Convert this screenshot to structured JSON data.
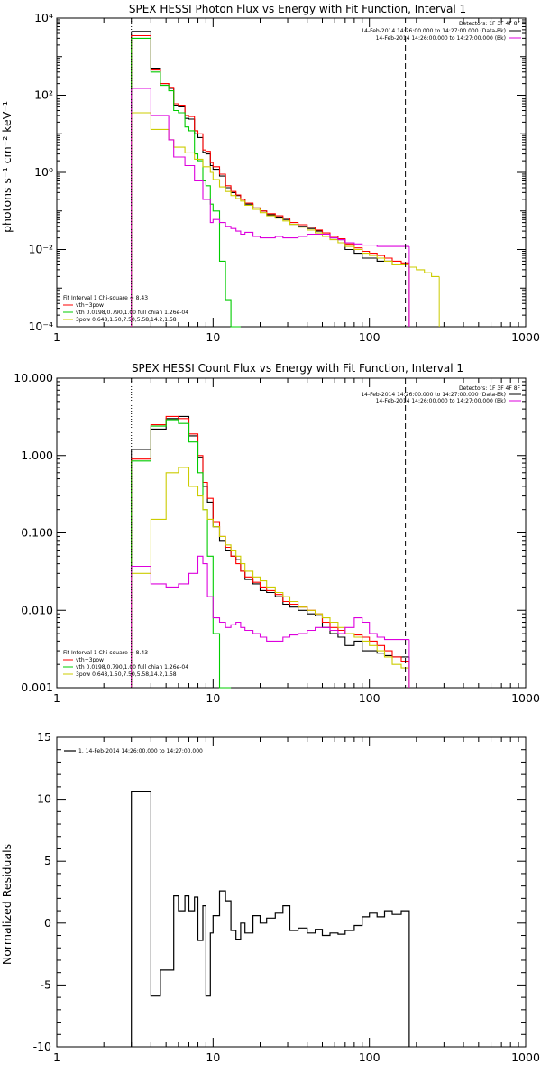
{
  "chart_data": [
    {
      "type": "line",
      "title": "SPEX HESSI Photon Flux vs Energy with Fit Function, Interval 1",
      "ylabel": "photons s⁻¹ cm⁻² keV⁻¹",
      "xlabel": "",
      "xscale": "log",
      "yscale": "log",
      "xlim": [
        1,
        1000
      ],
      "ylim": [
        0.0001,
        10000
      ],
      "x_ticks": [
        "1",
        "10",
        "100",
        "1000"
      ],
      "y_ticks": [
        "10⁻⁴",
        "10⁻²",
        "10⁰",
        "10²",
        "10⁴"
      ],
      "detectors": "Detectors: 1F 3F 4F 8F",
      "time_lines": [
        "14-Feb-2014 14:26:00.000 to 14:27:00.000 (Data-Bk)",
        "14-Feb-2014 14:26:00.000 to 14:27:00.000 (Bk)"
      ],
      "fit_text": [
        "Fit Interval 1    Chi-square = 8.43",
        "vth+3pow",
        "vth 0.0198,0.790,1.00  full chian 1.26e-04",
        "3pow 0.648,1.50,7.50,5.58,14.2,1.58"
      ],
      "edges": [
        3.0,
        3.4,
        4.0,
        4.6,
        5.2,
        5.6,
        6.0,
        6.6,
        7.0,
        7.6,
        8.0,
        8.6,
        9.0,
        9.6,
        10.0,
        11.0,
        12.0,
        13.0,
        14.0,
        15.0,
        16.0,
        18.0,
        20.0,
        22.0,
        25.0,
        28.0,
        31.0,
        35.0,
        40.0,
        45.0,
        50.0,
        56.0,
        63.0,
        70.0,
        80.0,
        90.0,
        100.0,
        112.0,
        125.0,
        140.0,
        160.0,
        180.0,
        200.0,
        225.0,
        250.0,
        280.0
      ],
      "series": [
        {
          "name": "Data-Bk",
          "color": "#000000",
          "values": [
            4500,
            4500,
            500,
            200,
            150,
            55,
            50,
            25,
            24,
            10,
            8,
            3.3,
            3.0,
            1.5,
            1.2,
            0.8,
            0.4,
            0.3,
            0.25,
            0.2,
            0.15,
            0.12,
            0.1,
            0.08,
            0.07,
            0.06,
            0.045,
            0.04,
            0.035,
            0.03,
            0.025,
            0.02,
            0.018,
            0.01,
            0.008,
            0.006,
            0.006,
            0.005,
            0.005,
            0.004,
            0.004
          ]
        },
        {
          "name": "vth+3pow",
          "color": "#ff0000",
          "values": [
            3500,
            3500,
            450,
            200,
            160,
            60,
            55,
            30,
            28,
            12,
            10,
            3.8,
            3.5,
            1.8,
            1.4,
            0.9,
            0.45,
            0.32,
            0.26,
            0.2,
            0.16,
            0.12,
            0.1,
            0.085,
            0.075,
            0.065,
            0.05,
            0.044,
            0.038,
            0.032,
            0.027,
            0.022,
            0.019,
            0.014,
            0.011,
            0.009,
            0.008,
            0.007,
            0.006,
            0.005,
            0.0045
          ]
        },
        {
          "name": "vth",
          "color": "#00cc00",
          "values": [
            3000,
            3000,
            400,
            180,
            130,
            40,
            35,
            15,
            12,
            3,
            2,
            0.6,
            0.45,
            0.15,
            0.1,
            0.005,
            0.0005,
            0.0001,
            0.0001
          ]
        },
        {
          "name": "3pow",
          "color": "#cccc00",
          "values": [
            35,
            35,
            13,
            13,
            7,
            4.5,
            4.5,
            3.2,
            3.2,
            2.2,
            2.2,
            1.4,
            1.4,
            1.0,
            0.65,
            0.42,
            0.32,
            0.25,
            0.21,
            0.18,
            0.14,
            0.11,
            0.09,
            0.075,
            0.065,
            0.055,
            0.045,
            0.038,
            0.032,
            0.027,
            0.022,
            0.018,
            0.015,
            0.012,
            0.01,
            0.008,
            0.007,
            0.006,
            0.005,
            0.004,
            0.004,
            0.0035,
            0.003,
            0.0025,
            0.002
          ]
        },
        {
          "name": "Bk",
          "color": "#dd00dd",
          "values": [
            150,
            150,
            30,
            30,
            7,
            2.5,
            2.5,
            1.5,
            1.5,
            0.6,
            0.6,
            0.2,
            0.2,
            0.05,
            0.06,
            0.05,
            0.04,
            0.035,
            0.03,
            0.025,
            0.028,
            0.022,
            0.02,
            0.02,
            0.022,
            0.02,
            0.02,
            0.022,
            0.025,
            0.025,
            0.025,
            0.02,
            0.018,
            0.015,
            0.014,
            0.013,
            0.013,
            0.012,
            0.012,
            0.012,
            0.012
          ]
        }
      ]
    },
    {
      "type": "line",
      "title": "SPEX HESSI Count Flux vs Energy with Fit Function, Interval 1",
      "xscale": "log",
      "yscale": "log",
      "xlim": [
        1,
        1000
      ],
      "ylim": [
        0.001,
        10
      ],
      "x_ticks": [
        "1",
        "10",
        "100",
        "1000"
      ],
      "y_ticks": [
        "0.001",
        "0.010",
        "0.100",
        "1.000",
        "10.000"
      ],
      "detectors": "Detectors: 1F 3F 4F 8F",
      "time_lines": [
        "14-Feb-2014 14:26:00.000 to 14:27:00.000 (Data-Bk)",
        "14-Feb-2014 14:26:00.000 to 14:27:00.000 (Bk)"
      ],
      "fit_text": [
        "Fit Interval 1    Chi-square = 8.43",
        "vth+3pow",
        "vth 0.0198,0.790,1.00  full chian 1.26e-04",
        "3pow 0.648,1.50,7.50,5.58,14.2,1.58"
      ],
      "edges": [
        3.0,
        4.0,
        5.0,
        6.0,
        7.0,
        8.0,
        8.6,
        9.2,
        10.0,
        11.0,
        12.0,
        13.0,
        14.0,
        15.0,
        16.0,
        18.0,
        20.0,
        22.0,
        25.0,
        28.0,
        31.0,
        35.0,
        40.0,
        45.0,
        50.0,
        56.0,
        63.0,
        70.0,
        80.0,
        90.0,
        100.0,
        112.0,
        125.0,
        140.0,
        160.0,
        180.0
      ],
      "series": [
        {
          "name": "Data-Bk",
          "color": "#000000",
          "values": [
            1.2,
            2.2,
            3.0,
            3.2,
            1.8,
            0.95,
            0.4,
            0.25,
            0.12,
            0.08,
            0.06,
            0.05,
            0.045,
            0.032,
            0.025,
            0.022,
            0.018,
            0.017,
            0.015,
            0.012,
            0.011,
            0.01,
            0.009,
            0.0085,
            0.006,
            0.005,
            0.0045,
            0.0035,
            0.004,
            0.003,
            0.003,
            0.0028,
            0.0026,
            0.0025,
            0.0025
          ]
        },
        {
          "name": "vth+3pow",
          "color": "#ff0000",
          "values": [
            0.9,
            2.5,
            3.2,
            3.0,
            1.9,
            1.0,
            0.45,
            0.28,
            0.14,
            0.09,
            0.065,
            0.05,
            0.04,
            0.032,
            0.027,
            0.023,
            0.02,
            0.018,
            0.016,
            0.013,
            0.012,
            0.011,
            0.01,
            0.009,
            0.007,
            0.006,
            0.0055,
            0.005,
            0.0048,
            0.0045,
            0.004,
            0.0035,
            0.003,
            0.0025,
            0.0022
          ]
        },
        {
          "name": "vth",
          "color": "#00cc00",
          "values": [
            0.85,
            2.4,
            2.9,
            2.6,
            1.5,
            0.6,
            0.2,
            0.05,
            0.005,
            0.001,
            0.001
          ]
        },
        {
          "name": "3pow",
          "color": "#cccc00",
          "values": [
            0.03,
            0.15,
            0.6,
            0.7,
            0.4,
            0.3,
            0.2,
            0.15,
            0.12,
            0.09,
            0.07,
            0.06,
            0.05,
            0.04,
            0.032,
            0.027,
            0.024,
            0.02,
            0.017,
            0.015,
            0.013,
            0.011,
            0.01,
            0.009,
            0.008,
            0.007,
            0.006,
            0.005,
            0.0045,
            0.004,
            0.0035,
            0.003,
            0.0025,
            0.002,
            0.0018
          ]
        },
        {
          "name": "Bk",
          "color": "#dd00dd",
          "values": [
            0.037,
            0.022,
            0.02,
            0.022,
            0.03,
            0.05,
            0.04,
            0.015,
            0.008,
            0.007,
            0.006,
            0.0065,
            0.007,
            0.006,
            0.0055,
            0.005,
            0.0045,
            0.004,
            0.004,
            0.0045,
            0.0048,
            0.005,
            0.0055,
            0.006,
            0.006,
            0.0055,
            0.005,
            0.006,
            0.008,
            0.007,
            0.005,
            0.0045,
            0.0042,
            0.0042,
            0.0042
          ]
        }
      ]
    },
    {
      "type": "line",
      "title": "",
      "ylabel": "Normalized Residuals",
      "xscale": "log",
      "xlim": [
        1,
        1000
      ],
      "ylim": [
        -10,
        15
      ],
      "x_ticks": [
        "1",
        "10",
        "100",
        "1000"
      ],
      "y_ticks": [
        "-10",
        "-5",
        "0",
        "5",
        "10",
        "15"
      ],
      "legend": "1. 14-Feb-2014 14:26:00.000 to 14:27:00.000",
      "edges": [
        3.0,
        4.0,
        4.6,
        5.6,
        6.0,
        6.6,
        7.0,
        7.6,
        8.0,
        8.6,
        9.0,
        9.6,
        10.0,
        11.0,
        12.0,
        13.0,
        14.0,
        15.0,
        16.0,
        18.0,
        20.0,
        22.0,
        25.0,
        28.0,
        31.0,
        35.0,
        40.0,
        45.0,
        50.0,
        56.0,
        63.0,
        70.0,
        80.0,
        90.0,
        100.0,
        112.0,
        125.0,
        140.0,
        160.0,
        180.0
      ],
      "series": [
        {
          "name": "1. 14-Feb-2014 14:26:00.000 to 14:27:00.000",
          "color": "#000000",
          "values": [
            10.6,
            -5.9,
            -3.8,
            2.2,
            1.0,
            2.2,
            1.0,
            2.1,
            -1.4,
            1.4,
            -5.9,
            -0.8,
            0.6,
            2.6,
            1.8,
            -0.6,
            -1.3,
            0.0,
            -0.8,
            0.6,
            0.0,
            0.4,
            0.8,
            1.4,
            -0.6,
            -0.4,
            -0.8,
            -0.5,
            -1.0,
            -0.8,
            -0.9,
            -0.6,
            -0.2,
            0.5,
            0.8,
            0.5,
            1.0,
            0.7,
            1.0
          ]
        }
      ]
    }
  ]
}
